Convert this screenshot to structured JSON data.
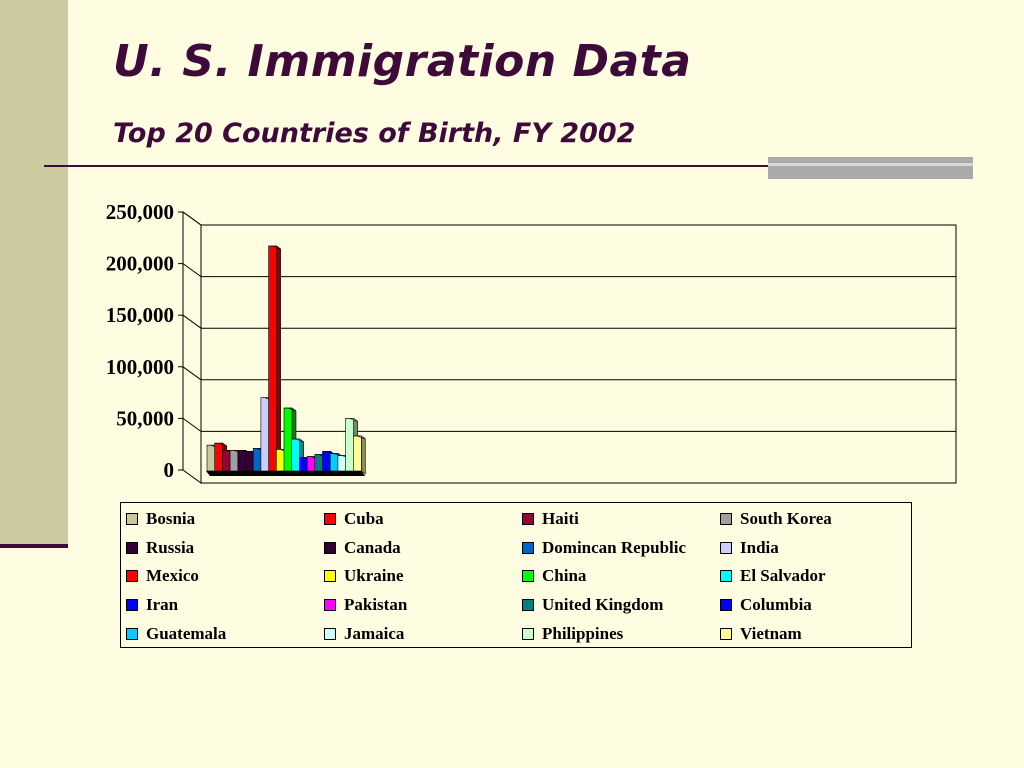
{
  "slide": {
    "title": "U. S. Immigration Data",
    "subtitle": "Top 20 Countries of Birth, FY 2002"
  },
  "colors": {
    "background": "#FFFDE1",
    "left_bar": "#CBCB9F",
    "title_text": "#3D0A3A",
    "rule": "#3D0A3A",
    "rule_block": "#ABAAAA"
  },
  "chart_data": {
    "type": "bar",
    "style": "3d-clustered",
    "title": "",
    "xlabel": "",
    "ylabel": "",
    "ylim": [
      0,
      250000
    ],
    "yticks": [
      "250,000",
      "200,000",
      "150,000",
      "100,000",
      "50,000",
      "0"
    ],
    "grid": true,
    "legend_position": "bottom",
    "series": [
      {
        "name": "Bosnia",
        "value": 25000,
        "color": "#C8C89A"
      },
      {
        "name": "Cuba",
        "value": 27000,
        "color": "#FF0000"
      },
      {
        "name": "Haiti",
        "value": 20000,
        "color": "#990033"
      },
      {
        "name": "South Korea",
        "value": 20000,
        "color": "#A0A0A0"
      },
      {
        "name": "Russia",
        "value": 20000,
        "color": "#330033"
      },
      {
        "name": "Canada",
        "value": 19000,
        "color": "#330033"
      },
      {
        "name": "Domincan Republic",
        "value": 22000,
        "color": "#0066CC"
      },
      {
        "name": "India",
        "value": 71000,
        "color": "#CCCCFF"
      },
      {
        "name": "Mexico",
        "value": 218000,
        "color": "#FF0000"
      },
      {
        "name": "Ukraine",
        "value": 21000,
        "color": "#FFFF00"
      },
      {
        "name": "China",
        "value": 61000,
        "color": "#00FF00"
      },
      {
        "name": "El Salvador",
        "value": 31000,
        "color": "#00FFFF"
      },
      {
        "name": "Iran",
        "value": 13000,
        "color": "#0000FF"
      },
      {
        "name": "Pakistan",
        "value": 14000,
        "color": "#FF00FF"
      },
      {
        "name": "United Kingdom",
        "value": 16000,
        "color": "#008080"
      },
      {
        "name": "Columbia",
        "value": 19000,
        "color": "#0000FF"
      },
      {
        "name": "Guatemala",
        "value": 17000,
        "color": "#00CCFF"
      },
      {
        "name": "Jamaica",
        "value": 15000,
        "color": "#CCFFFF"
      },
      {
        "name": "Philippines",
        "value": 51000,
        "color": "#CCFFCC"
      },
      {
        "name": "Vietnam",
        "value": 34000,
        "color": "#FFFF99"
      }
    ]
  }
}
